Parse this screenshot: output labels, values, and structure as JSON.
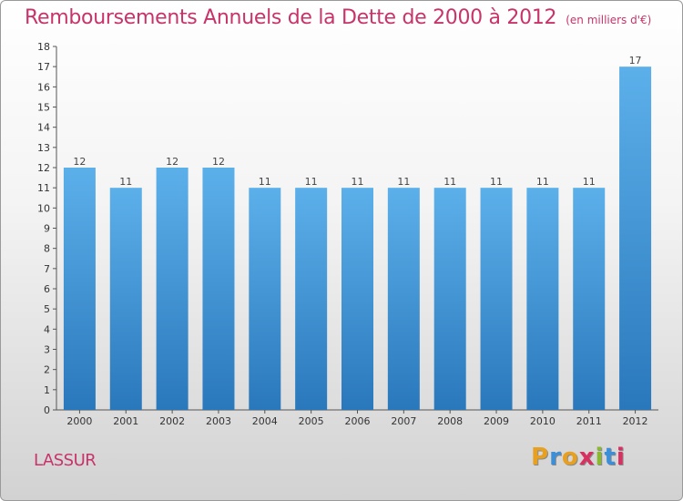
{
  "chart_data": {
    "type": "bar",
    "title": "Remboursements Annuels de la Dette de 2000 à 2012",
    "subtitle": "(en milliers d'€)",
    "categories": [
      "2000",
      "2001",
      "2002",
      "2003",
      "2004",
      "2005",
      "2006",
      "2007",
      "2008",
      "2009",
      "2010",
      "2011",
      "2012"
    ],
    "values": [
      12,
      11,
      12,
      12,
      11,
      11,
      11,
      11,
      11,
      11,
      11,
      11,
      17
    ],
    "ylim": [
      0,
      18
    ],
    "yticks": [
      0,
      1,
      2,
      3,
      4,
      5,
      6,
      7,
      8,
      9,
      10,
      11,
      12,
      13,
      14,
      15,
      16,
      17,
      18
    ],
    "grid": false,
    "bar_color": "#4a9fe0"
  },
  "footer": {
    "city": "LASSUR",
    "logo_letters": [
      "P",
      "r",
      "o",
      "x",
      "i",
      "t",
      "i"
    ],
    "logo_colors": [
      "#e8a020",
      "#3a8fd8",
      "#e8a020",
      "#d83060",
      "#8ab830",
      "#3a8fd8",
      "#d83060"
    ]
  }
}
